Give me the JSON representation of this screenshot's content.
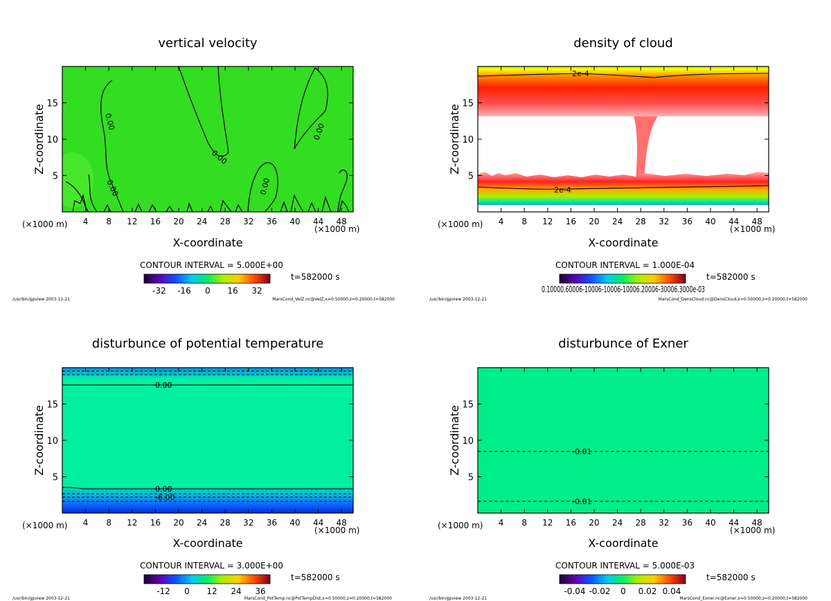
{
  "chart_data": [
    {
      "type": "heatmap",
      "title": "vertical velocity",
      "xlabel": "X-coordinate",
      "ylabel": "Z-coordinate",
      "x_unit": "(×1000 m)",
      "xlim": [
        0,
        50
      ],
      "ylim": [
        0,
        20
      ],
      "x_ticks": [
        4,
        8,
        12,
        16,
        20,
        24,
        28,
        32,
        36,
        40,
        44,
        48
      ],
      "y_ticks": [
        5,
        10,
        15
      ],
      "contour_interval": "CONTOUR INTERVAL = 5.000E+00",
      "contour_labels": [
        "0.00",
        "0.00",
        "0.00",
        "0.00",
        "0.00"
      ],
      "colorbar_ticks": [
        "-32",
        "-16",
        "0",
        "16",
        "32"
      ],
      "time_label": "t=582000 s",
      "footer_left": "/usr/bin/gpview  2003-12-21",
      "footer_right": "MarsCond_VelZ.nc@VelZ,x=0:50000,z=0:20000,t=582000",
      "field_color": "#33dd22"
    },
    {
      "type": "heatmap",
      "title": "density of cloud",
      "xlabel": "X-coordinate",
      "ylabel": "Z-coordinate",
      "x_unit": "(×1000 m)",
      "xlim": [
        0,
        50
      ],
      "ylim": [
        0,
        20
      ],
      "x_ticks": [
        4,
        8,
        12,
        16,
        20,
        24,
        28,
        32,
        36,
        40,
        44,
        48
      ],
      "y_ticks": [
        5,
        10,
        15
      ],
      "contour_interval": "CONTOUR INTERVAL = 1.000E-04",
      "contour_labels": [
        "2e-4",
        "2e-4"
      ],
      "colorbar_ticks_text": "0.10000.60006-10006-10006-10006.20006-30006.3000e-03",
      "time_label": "t=582000 s",
      "footer_left": "/usr/bin/gpview  2003-12-21",
      "footer_right": "MarsCond_DensCloud.nc@DensCloud,x=0:50000,z=0:20000,t=582000"
    },
    {
      "type": "heatmap",
      "title": "disturbunce of potential temperature",
      "xlabel": "X-coordinate",
      "ylabel": "Z-coordinate",
      "x_unit": "(×1000 m)",
      "xlim": [
        0,
        50
      ],
      "ylim": [
        0,
        20
      ],
      "x_ticks": [
        4,
        8,
        12,
        16,
        20,
        24,
        28,
        32,
        36,
        40,
        44,
        48
      ],
      "y_ticks": [
        5,
        10,
        15
      ],
      "contour_interval": "CONTOUR INTERVAL = 3.000E+00",
      "contour_labels": [
        "0.00",
        "0.00",
        "-6.00"
      ],
      "colorbar_ticks": [
        "-12",
        "0",
        "12",
        "24",
        "36"
      ],
      "time_label": "t=582000 s",
      "footer_left": "/usr/bin/gpview  2003-12-21",
      "footer_right": "MarsCond_PotTemp.nc@PotTempDist,x=0:50000,z=0:20000,t=582000",
      "field_color": "#00f0a0"
    },
    {
      "type": "heatmap",
      "title": "disturbunce of Exner",
      "xlabel": "X-coordinate",
      "ylabel": "Z-coordinate",
      "x_unit": "(×1000 m)",
      "xlim": [
        0,
        50
      ],
      "ylim": [
        0,
        20
      ],
      "x_ticks": [
        4,
        8,
        12,
        16,
        20,
        24,
        28,
        32,
        36,
        40,
        44,
        48
      ],
      "y_ticks": [
        5,
        10,
        15
      ],
      "contour_interval": "CONTOUR INTERVAL = 5.000E-03",
      "contour_labels": [
        "-0.01",
        "-0.01"
      ],
      "colorbar_ticks": [
        "-0.04",
        "-0.02",
        "0",
        "0.02",
        "0.04"
      ],
      "time_label": "t=582000 s",
      "footer_left": "/usr/bin/gpview  2003-12-21",
      "footer_right": "MarsCond_Exner.nc@Exner,x=0:50000,z=0:20000,t=582000",
      "field_color": "#00ee88"
    }
  ]
}
